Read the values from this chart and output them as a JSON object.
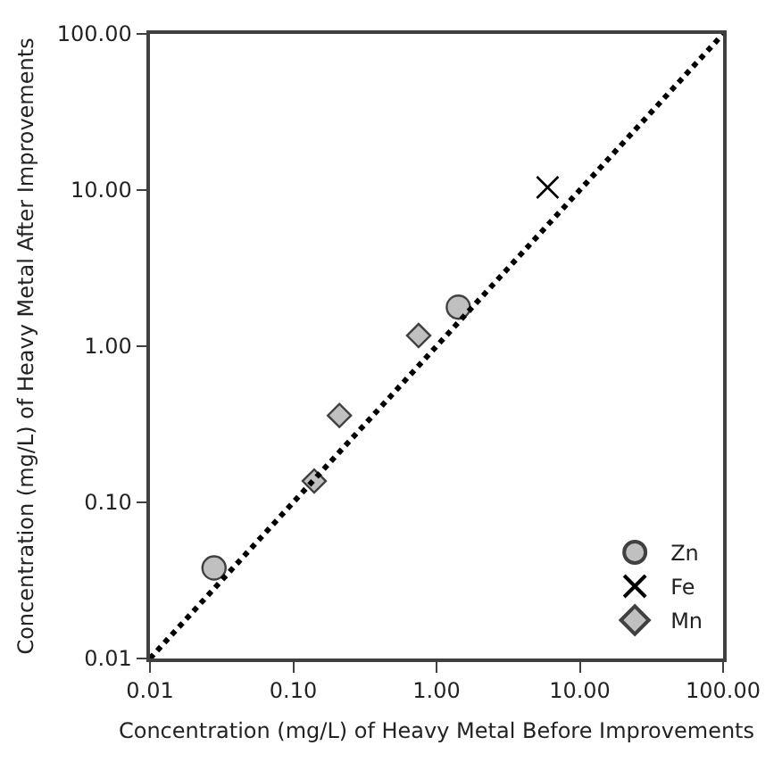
{
  "chart_data": {
    "type": "scatter",
    "xlabel": "Concentration (mg/L) of Heavy Metal Before Improvements",
    "ylabel": "Concentration (mg/L) of Heavy Metal After Improvements",
    "log": "xy",
    "legend": "bottom right",
    "xlim": [
      0.01,
      100
    ],
    "ylim": [
      0.01,
      100
    ],
    "xticks": [
      0.01,
      {
        "value": 0.1,
        "label": "0.10"
      },
      {
        "value": 1,
        "label": "1.00"
      },
      {
        "value": 10,
        "label": "10.00"
      },
      {
        "value": 100,
        "label": "100.00"
      }
    ],
    "yticks": [
      0.01,
      {
        "value": 0.1,
        "label": "0.10"
      },
      {
        "value": 1,
        "label": "1.00"
      },
      {
        "value": 10,
        "label": "10.00"
      },
      {
        "value": 100,
        "label": "100.00"
      }
    ],
    "series": [
      {
        "name": "Zn",
        "color": "#c0c0c0",
        "marker": "circle",
        "x": [
          0.028,
          1.42
        ],
        "values": [
          0.038,
          1.78
        ]
      },
      {
        "name": "Fe",
        "color": "#000000",
        "marker": "cross",
        "x": [
          5.96
        ],
        "values": [
          10.4
        ]
      },
      {
        "name": "Mn",
        "color": "#c0c0c0",
        "marker": "diamond",
        "x": [
          0.14,
          0.21,
          0.75
        ],
        "values": [
          0.137,
          0.36,
          1.17
        ]
      },
      {
        "type": "line",
        "color": "#000000",
        "line_style": "dotted",
        "marker": "none",
        "x": [
          0.01,
          100
        ],
        "values": [
          0.01,
          100
        ]
      }
    ]
  }
}
